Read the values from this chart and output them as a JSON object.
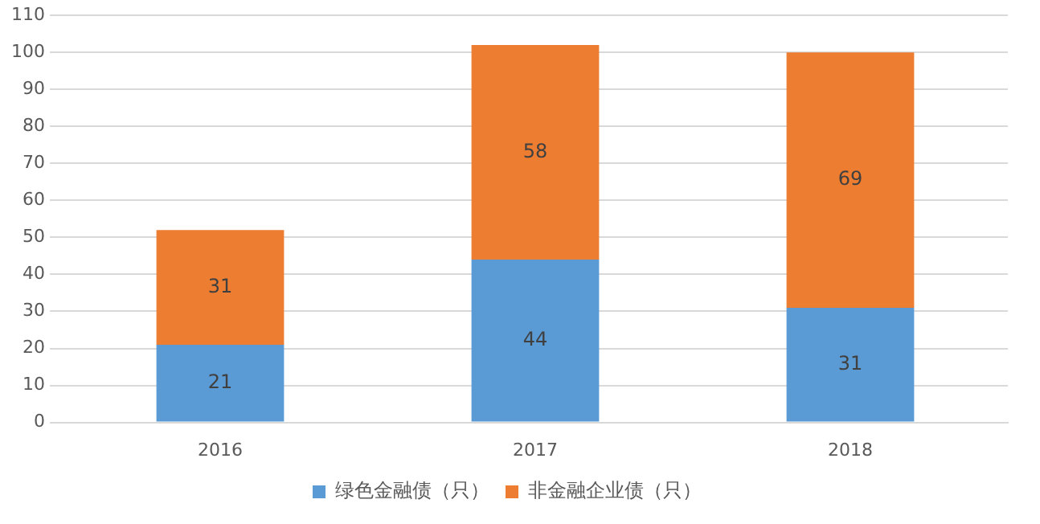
{
  "chart_data": {
    "type": "bar",
    "stacked": true,
    "categories": [
      "2016",
      "2017",
      "2018"
    ],
    "series": [
      {
        "name": "绿色金融债（只）",
        "color": "#5b9bd5",
        "values": [
          21,
          44,
          31
        ]
      },
      {
        "name": "非金融企业债（只）",
        "color": "#ed7d31",
        "values": [
          31,
          58,
          69
        ]
      }
    ],
    "ylim": [
      0,
      110
    ],
    "yticks": [
      0,
      10,
      20,
      30,
      40,
      50,
      60,
      70,
      80,
      90,
      100,
      110
    ],
    "grid": "y",
    "legend": "bottom",
    "data_labels": true
  }
}
